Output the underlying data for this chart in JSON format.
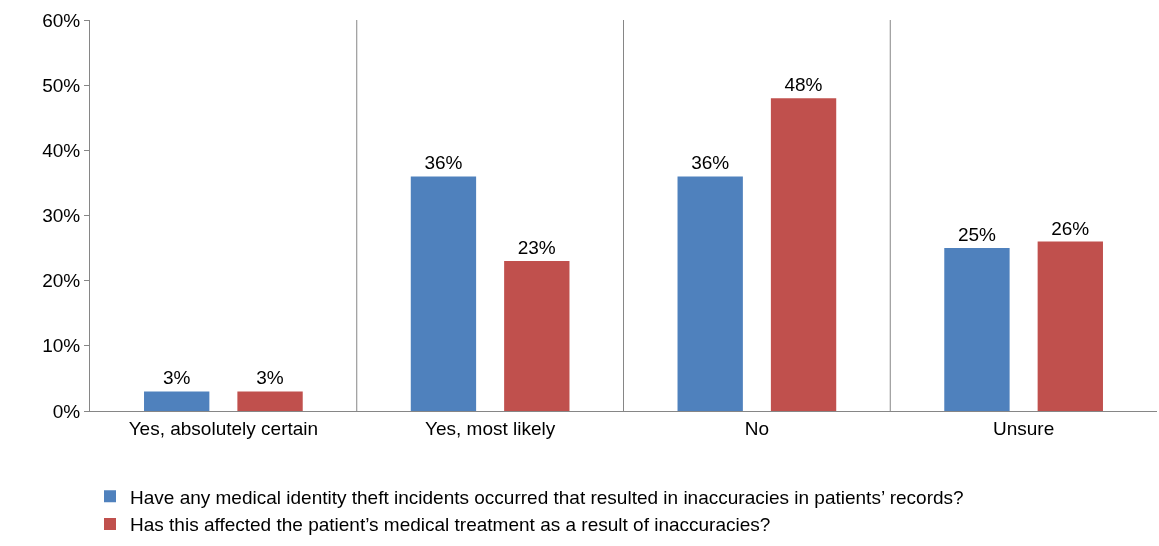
{
  "chart_data": {
    "type": "bar",
    "categories": [
      "Yes, absolutely certain",
      "Yes, most likely",
      "No",
      "Unsure"
    ],
    "series": [
      {
        "name": "Have any medical identity theft incidents occurred that resulted in inaccuracies in patients’ records?",
        "color": "#4f81bd",
        "values": [
          3,
          36,
          36,
          25
        ],
        "value_labels": [
          "3%",
          "36%",
          "36%",
          "25%"
        ]
      },
      {
        "name": "Has this affected the patient’s medical treatment as a result of inaccuracies?",
        "color": "#c0504d",
        "values": [
          3,
          23,
          48,
          26
        ],
        "value_labels": [
          "3%",
          "23%",
          "48%",
          "26%"
        ]
      }
    ],
    "ylim": [
      0,
      60
    ],
    "yticks": [
      {
        "value": 0,
        "label": "0%"
      },
      {
        "value": 10,
        "label": "10%"
      },
      {
        "value": 20,
        "label": "20%"
      },
      {
        "value": 30,
        "label": "30%"
      },
      {
        "value": 40,
        "label": "40%"
      },
      {
        "value": 50,
        "label": "50%"
      },
      {
        "value": 60,
        "label": "60%"
      }
    ],
    "grid": "x",
    "legend": "bottom"
  }
}
